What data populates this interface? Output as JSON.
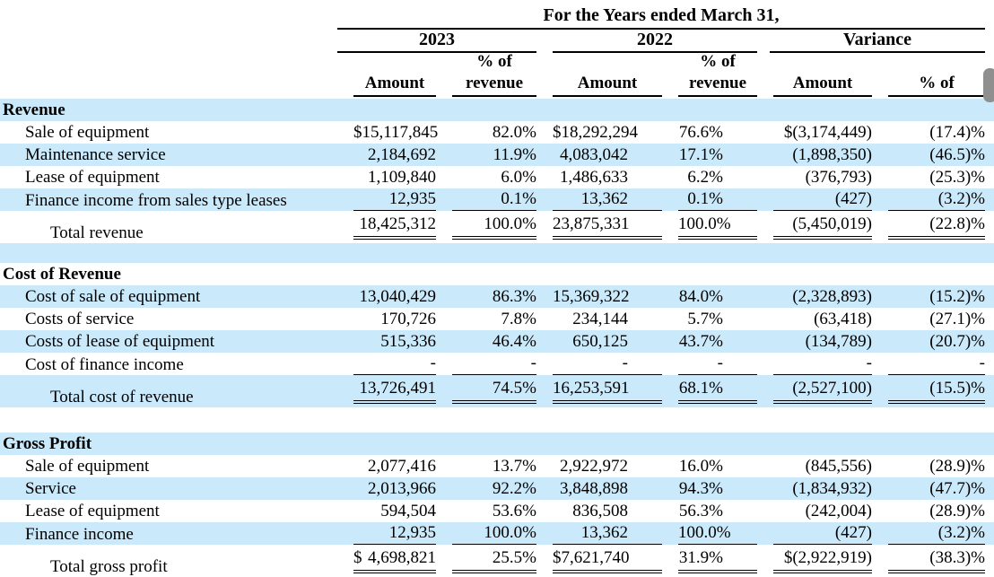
{
  "colors": {
    "stripe": "#cae9fa",
    "scrollbar_thumb": "#8f8f8f"
  },
  "scrollbar": {
    "visible": true
  },
  "header": {
    "title": "For the Years ended March 31,",
    "group_2023": "2023",
    "group_2022": "2022",
    "group_variance": "Variance",
    "col_amount": "Amount",
    "col_pct_line1": "% of",
    "col_pct_line2": "revenue",
    "col_var_pct": "% of"
  },
  "table": {
    "columns": [
      "",
      "2023 Amount",
      "2023 % of revenue",
      "2022 Amount",
      "2022 % of revenue",
      "Variance Amount",
      "Variance % of"
    ],
    "rows": [
      {
        "type": "section",
        "label": "Revenue",
        "bg": "blue"
      },
      {
        "type": "item",
        "label": "Sale of equipment",
        "bg": "white",
        "cells": [
          "$15,117,845",
          "82.0%",
          "$18,292,294",
          "76.6%",
          "$(3,174,449)",
          "(17.4)%"
        ]
      },
      {
        "type": "item",
        "label": "Maintenance service",
        "bg": "blue",
        "cells": [
          "2,184,692",
          "11.9%",
          "4,083,042",
          "17.1%",
          "(1,898,350)",
          "(46.5)%"
        ]
      },
      {
        "type": "item",
        "label": "Lease of equipment",
        "bg": "white",
        "cells": [
          "1,109,840",
          "6.0%",
          "1,486,633",
          "6.2%",
          "(376,793)",
          "(25.3)%"
        ]
      },
      {
        "type": "item",
        "label": "Finance income from sales type leases",
        "bg": "blue",
        "rule": "single",
        "cells": [
          "12,935",
          "0.1%",
          "13,362",
          "0.1%",
          "(427)",
          "(3.2)%"
        ]
      },
      {
        "type": "total",
        "label": "Total revenue",
        "bg": "white",
        "rule": "double",
        "cells": [
          "18,425,312",
          "100.0%",
          "23,875,331",
          "100.0%",
          "(5,450,019)",
          "(22.8)%"
        ]
      },
      {
        "type": "spacer",
        "bg": "blue"
      },
      {
        "type": "section",
        "label": "Cost of Revenue",
        "bg": "white"
      },
      {
        "type": "item",
        "label": "Cost of sale of equipment",
        "bg": "blue",
        "cells": [
          "13,040,429",
          "86.3%",
          "15,369,322",
          "84.0%",
          "(2,328,893)",
          "(15.2)%"
        ]
      },
      {
        "type": "item",
        "label": "Costs of service",
        "bg": "white",
        "cells": [
          "170,726",
          "7.8%",
          "234,144",
          "5.7%",
          "(63,418)",
          "(27.1)%"
        ]
      },
      {
        "type": "item",
        "label": "Costs of lease of equipment",
        "bg": "blue",
        "cells": [
          "515,336",
          "46.4%",
          "650,125",
          "43.7%",
          "(134,789)",
          "(20.7)%"
        ]
      },
      {
        "type": "item",
        "label": "Cost of finance income",
        "bg": "white",
        "rule": "single",
        "cells": [
          "-",
          "-",
          "-",
          "-",
          "-",
          "-"
        ]
      },
      {
        "type": "total",
        "label": "Total cost of revenue",
        "bg": "blue",
        "rule": "double",
        "cells": [
          "13,726,491",
          "74.5%",
          "16,253,591",
          "68.1%",
          "(2,527,100)",
          "(15.5)%"
        ]
      },
      {
        "type": "spacer",
        "bg": "white",
        "tall": true
      },
      {
        "type": "section",
        "label": "Gross Profit",
        "bg": "blue"
      },
      {
        "type": "item",
        "label": "Sale of equipment",
        "bg": "white",
        "cells": [
          "2,077,416",
          "13.7%",
          "2,922,972",
          "16.0%",
          "(845,556)",
          "(28.9)%"
        ]
      },
      {
        "type": "item",
        "label": "Service",
        "bg": "blue",
        "cells": [
          "2,013,966",
          "92.2%",
          "3,848,898",
          "94.3%",
          "(1,834,932)",
          "(47.7)%"
        ]
      },
      {
        "type": "item",
        "label": "Lease of equipment",
        "bg": "white",
        "cells": [
          "594,504",
          "53.6%",
          "836,508",
          "56.3%",
          "(242,004)",
          "(28.9)%"
        ]
      },
      {
        "type": "item",
        "label": "Finance income",
        "bg": "blue",
        "rule": "single",
        "cells": [
          "12,935",
          "100.0%",
          "13,362",
          "100.0%",
          "(427)",
          "(3.2)%"
        ]
      },
      {
        "type": "total",
        "label": "Total gross profit",
        "bg": "white",
        "rule": "double",
        "cells": [
          "$ 4,698,821",
          "25.5%",
          "$ 7,621,740",
          "31.9%",
          "$(2,922,919)",
          "(38.3)%"
        ]
      }
    ]
  }
}
